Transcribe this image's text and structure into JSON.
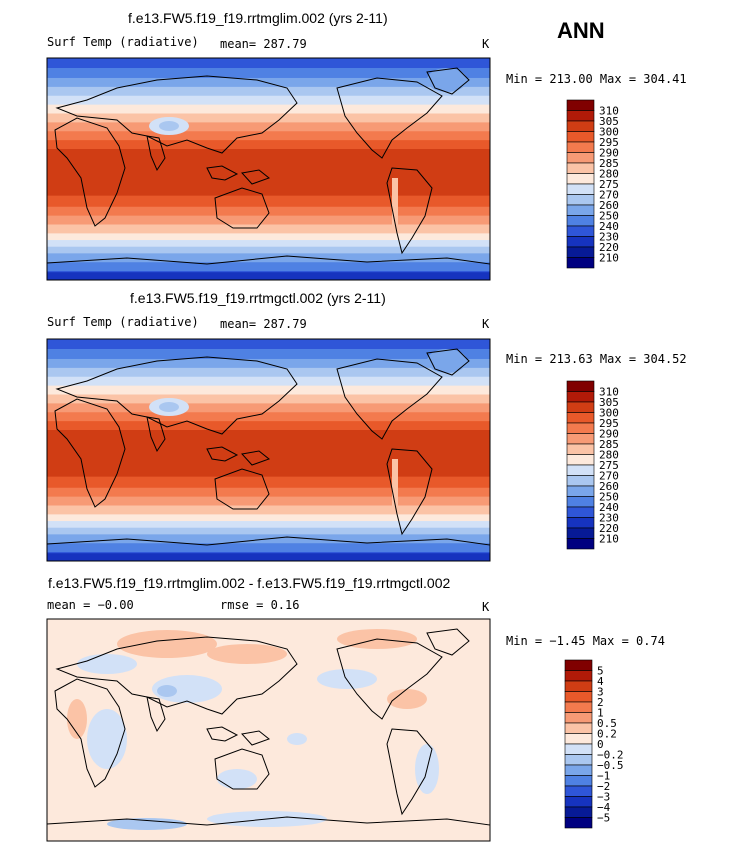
{
  "season": "ANN",
  "panels": [
    {
      "title": "f.e13.FW5.f19_f19.rrtmglim.002 (yrs 2-11)",
      "left_text": "Surf Temp (radiative)",
      "center_text": "mean= 287.79",
      "right_text": "K",
      "minmax": "Min = 213.00 Max = 304.41"
    },
    {
      "title": "f.e13.FW5.f19_f19.rrtmgctl.002 (yrs 2-11)",
      "left_text": "Surf Temp (radiative)",
      "center_text": "mean= 287.79",
      "right_text": "K",
      "minmax": "Min = 213.63 Max = 304.52"
    },
    {
      "title": "f.e13.FW5.f19_f19.rrtmglim.002 - f.e13.FW5.f19_f19.rrtmgctl.002",
      "left_text": "mean =  −0.00",
      "center_text": "rmse =   0.16",
      "right_text": "K",
      "minmax": "Min =  −1.45 Max =   0.74"
    }
  ],
  "chart_data": [
    {
      "type": "heatmap",
      "title": "f.e13.FW5.f19_f19.rrtmglim.002 (yrs 2-11)",
      "variable": "Surf Temp (radiative)",
      "units": "K",
      "mean": 287.79,
      "min": 213.0,
      "max": 304.41,
      "colorbar_levels": [
        "310",
        "305",
        "300",
        "295",
        "290",
        "285",
        "280",
        "275",
        "270",
        "260",
        "250",
        "240",
        "230",
        "220",
        "210"
      ],
      "colorbar_colors": [
        "#800000",
        "#b11a08",
        "#d03d14",
        "#e8592a",
        "#f37a4e",
        "#f79a75",
        "#fbc3a6",
        "#fde9dc",
        "#d2e1f7",
        "#aac7f0",
        "#7aa6ea",
        "#4f81e3",
        "#2f56d8",
        "#1633bf",
        "#071a96",
        "#000080"
      ]
    },
    {
      "type": "heatmap",
      "title": "f.e13.FW5.f19_f19.rrtmgctl.002 (yrs 2-11)",
      "variable": "Surf Temp (radiative)",
      "units": "K",
      "mean": 287.79,
      "min": 213.63,
      "max": 304.52,
      "colorbar_levels": [
        "310",
        "305",
        "300",
        "295",
        "290",
        "285",
        "280",
        "275",
        "270",
        "260",
        "250",
        "240",
        "230",
        "220",
        "210"
      ],
      "colorbar_colors": [
        "#800000",
        "#b11a08",
        "#d03d14",
        "#e8592a",
        "#f37a4e",
        "#f79a75",
        "#fbc3a6",
        "#fde9dc",
        "#d2e1f7",
        "#aac7f0",
        "#7aa6ea",
        "#4f81e3",
        "#2f56d8",
        "#1633bf",
        "#071a96",
        "#000080"
      ]
    },
    {
      "type": "heatmap",
      "title": "f.e13.FW5.f19_f19.rrtmglim.002 - f.e13.FW5.f19_f19.rrtmgctl.002",
      "units": "K",
      "mean": -0.0,
      "rmse": 0.16,
      "min": -1.45,
      "max": 0.74,
      "colorbar_levels": [
        "5",
        "4",
        "3",
        "2",
        "1",
        "0.5",
        "0.2",
        "0",
        "−0.2",
        "−0.5",
        "−1",
        "−2",
        "−3",
        "−4",
        "−5"
      ],
      "colorbar_colors": [
        "#800000",
        "#b11a08",
        "#d03d14",
        "#e8592a",
        "#f37a4e",
        "#f79a75",
        "#fbc3a6",
        "#fde9dc",
        "#d2e1f7",
        "#aac7f0",
        "#7aa6ea",
        "#4f81e3",
        "#2f56d8",
        "#1633bf",
        "#071a96",
        "#000080"
      ]
    }
  ]
}
